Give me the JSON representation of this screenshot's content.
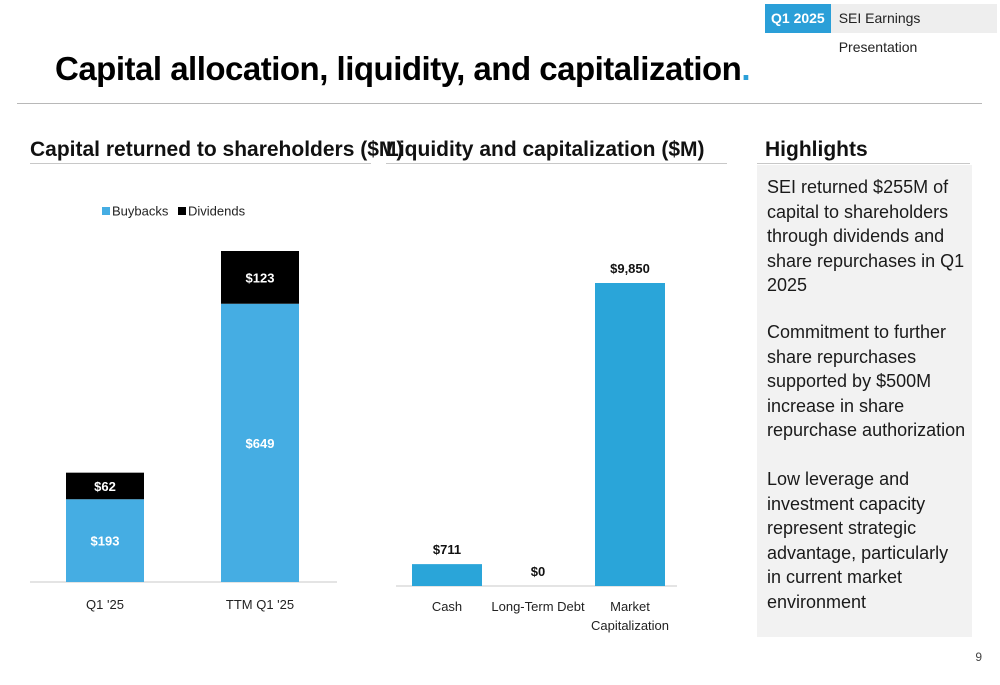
{
  "header": {
    "badge_quarter": "Q1 2025",
    "badge_title": "SEI Earnings Presentation",
    "title": "Capital allocation, liquidity, and capitalization",
    "title_dot": "."
  },
  "colors": {
    "accent": "#2a9fd8",
    "buybacks": "#45ade3",
    "dividends": "#000000",
    "liquidity_bar": "#2aa5d9"
  },
  "sections": {
    "left_title": "Capital returned to shareholders ($M)",
    "middle_title": "Liquidity and capitalization ($M)",
    "right_title": "Highlights"
  },
  "highlights": [
    "SEI returned $255M of capital to shareholders through dividends and share repurchases in Q1 2025",
    "Commitment to further share repurchases supported by $500M increase in share repurchase authorization",
    "Low leverage and investment capacity represent strategic advantage, particularly in current market environment"
  ],
  "page_number": "9",
  "chart_data": [
    {
      "type": "bar",
      "stacked": true,
      "categories": [
        "Q1 '25",
        "TTM Q1 '25"
      ],
      "series": [
        {
          "name": "Buybacks",
          "values": [
            193,
            649
          ],
          "labels": [
            "$193",
            "$649"
          ]
        },
        {
          "name": "Dividends",
          "values": [
            62,
            123
          ],
          "labels": [
            "$62",
            "$123"
          ]
        }
      ],
      "legend": "top-left",
      "grid": false
    },
    {
      "type": "bar",
      "categories": [
        "Cash",
        "Long-Term Debt",
        "Market Capitalization"
      ],
      "values": [
        711,
        0,
        9850
      ],
      "labels": [
        "$711",
        "$0",
        "$9,850"
      ],
      "grid": false
    }
  ]
}
